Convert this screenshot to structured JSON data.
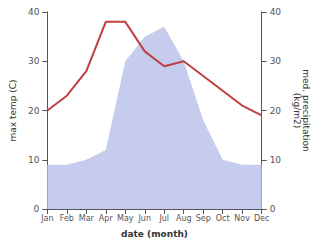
{
  "chart_data": {
    "type": "line",
    "categories": [
      "Jan",
      "Feb",
      "Mar",
      "Apr",
      "May",
      "Jun",
      "Jul",
      "Aug",
      "Sep",
      "Oct",
      "Nov",
      "Dec"
    ],
    "series": [
      {
        "type": "area",
        "color": "#c5ccee",
        "axis": "y2",
        "values": [
          9,
          9,
          10,
          12,
          30,
          35,
          37,
          30,
          18,
          10,
          9,
          9
        ]
      },
      {
        "type": "line",
        "color": "#c04040",
        "values": [
          20,
          23,
          28,
          38,
          38,
          32,
          29,
          30,
          27,
          24,
          21,
          19
        ]
      }
    ],
    "xlabel": "date (month)",
    "ylabel": "max temp (C)",
    "y2label": "med. precipitation\n(kg/m2)",
    "ylim": [
      0,
      40
    ],
    "yticks": [
      0,
      10,
      20,
      30,
      40
    ],
    "y2lim": [
      0,
      40
    ],
    "y2ticks": [
      0,
      10,
      20,
      30,
      40
    ],
    "grid": false
  }
}
